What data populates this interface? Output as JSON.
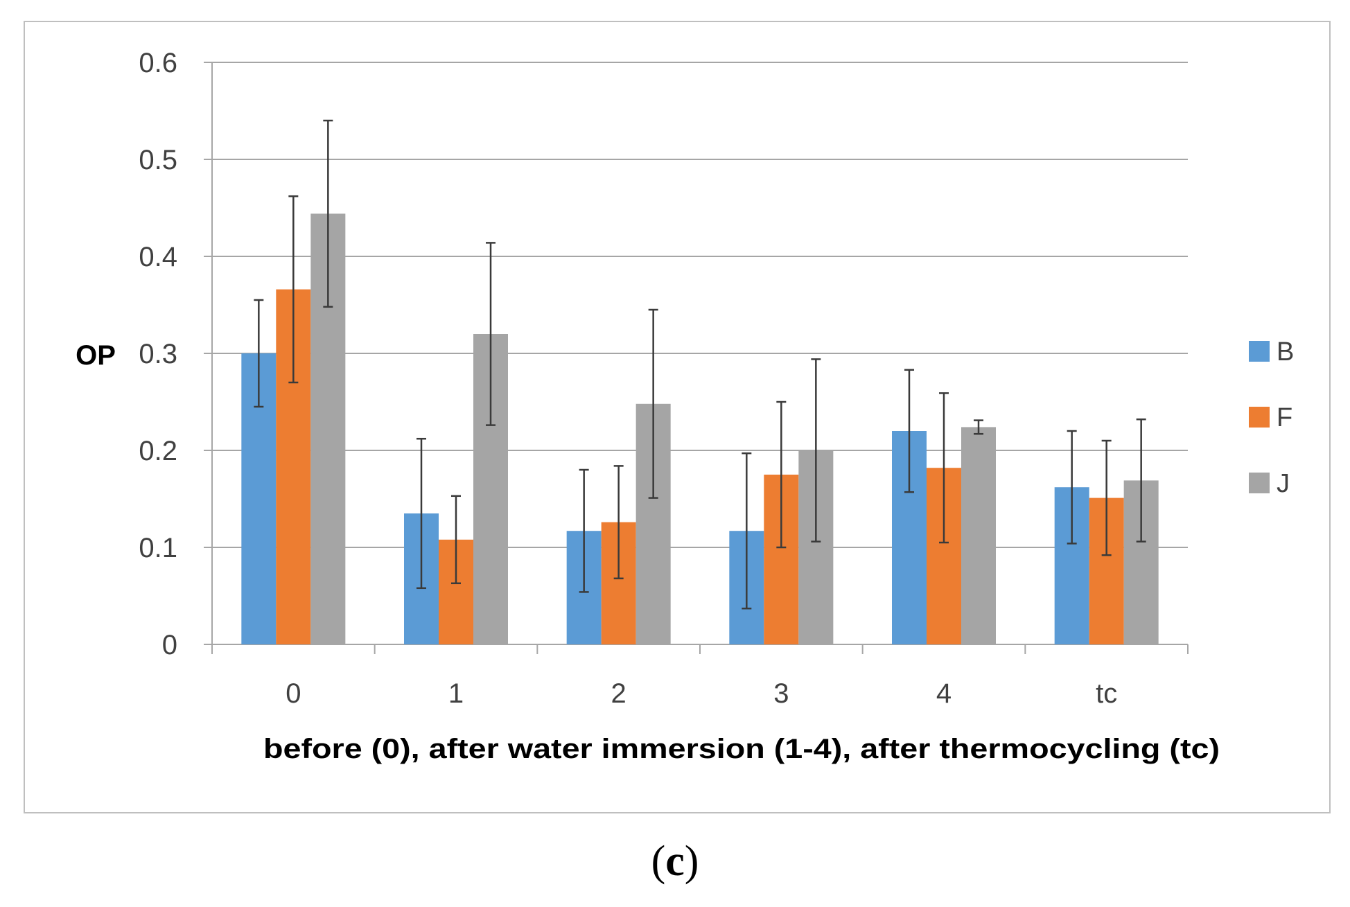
{
  "chart_data": {
    "type": "bar",
    "title": "",
    "xlabel": "before (0), after water immersion (1-4), after thermocycling (tc)",
    "ylabel": "OP",
    "categories": [
      "0",
      "1",
      "2",
      "3",
      "4",
      "tc"
    ],
    "ylim": [
      0,
      0.6
    ],
    "yticks": [
      0,
      0.1,
      0.2,
      0.3,
      0.4,
      0.5,
      0.6
    ],
    "ytick_labels": [
      "0",
      "0.1",
      "0.2",
      "0.3",
      "0.4",
      "0.5",
      "0.6"
    ],
    "grid": true,
    "legend_position": "right",
    "series": [
      {
        "name": "B",
        "color": "#5b9bd5",
        "values": [
          0.3,
          0.135,
          0.117,
          0.117,
          0.22,
          0.162
        ],
        "error": [
          0.055,
          0.077,
          0.063,
          0.08,
          0.063,
          0.058
        ]
      },
      {
        "name": "F",
        "color": "#ed7d31",
        "values": [
          0.366,
          0.108,
          0.126,
          0.175,
          0.182,
          0.151
        ],
        "error": [
          0.096,
          0.045,
          0.058,
          0.075,
          0.077,
          0.059
        ]
      },
      {
        "name": "J",
        "color": "#a5a5a5",
        "values": [
          0.444,
          0.32,
          0.248,
          0.2,
          0.224,
          0.169
        ],
        "error": [
          0.096,
          0.094,
          0.097,
          0.094,
          0.007,
          0.063
        ]
      }
    ]
  },
  "caption": {
    "open": "(",
    "letter": "c",
    "close": ")"
  }
}
